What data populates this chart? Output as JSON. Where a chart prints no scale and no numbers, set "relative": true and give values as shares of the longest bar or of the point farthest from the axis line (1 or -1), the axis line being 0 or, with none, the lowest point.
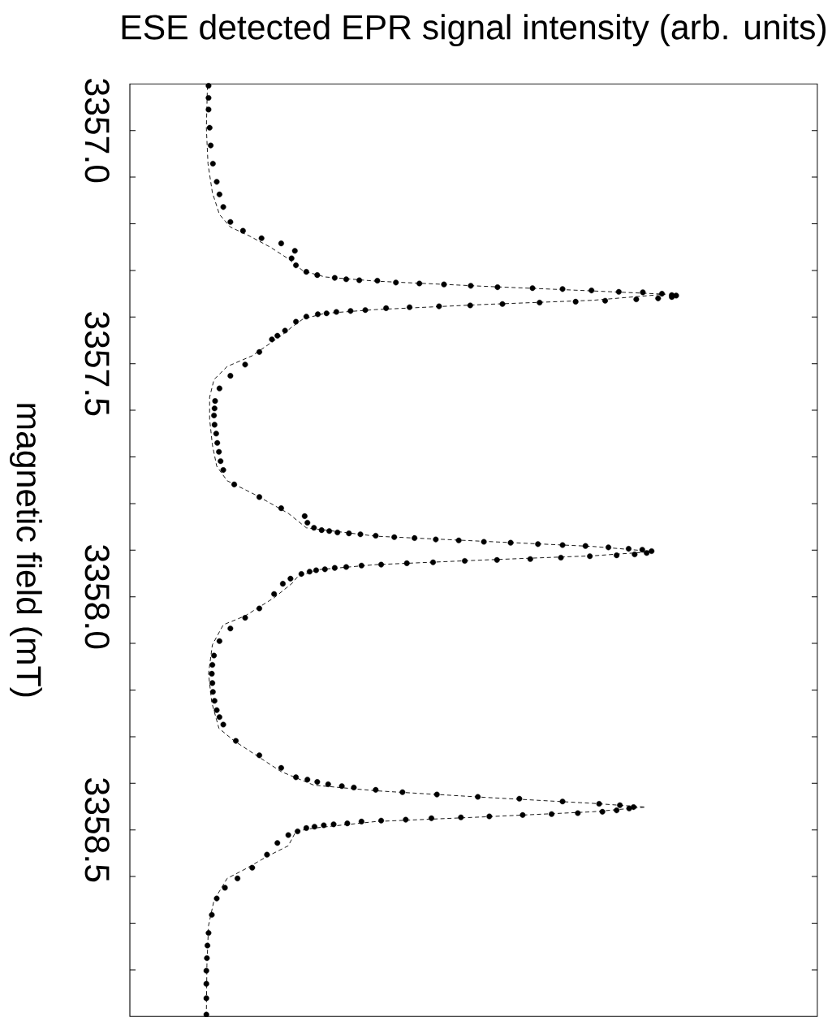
{
  "chart_data": {
    "type": "scatter",
    "orientation": "horizontal",
    "xlabel": "ESE detected EPR signal intensity (arb. units)",
    "ylabel": "magnetic field (mT)",
    "relative": true,
    "ylim": [
      3358.9,
      3356.9
    ],
    "yticks": [
      {
        "value": 3357,
        "label": "3357.0"
      },
      {
        "value": 3357.1,
        "label": null
      },
      {
        "value": 3357.2,
        "label": null
      },
      {
        "value": 3357.3,
        "label": null
      },
      {
        "value": 3357.4,
        "label": null
      },
      {
        "value": 3357.5,
        "label": "3357.5"
      },
      {
        "value": 3357.6,
        "label": null
      },
      {
        "value": 3357.7,
        "label": null
      },
      {
        "value": 3357.8,
        "label": null
      },
      {
        "value": 3357.9,
        "label": null
      },
      {
        "value": 3358,
        "label": "3358.0"
      },
      {
        "value": 3358.1,
        "label": null
      },
      {
        "value": 3358.2,
        "label": null
      },
      {
        "value": 3358.3,
        "label": null
      },
      {
        "value": 3358.4,
        "label": null
      },
      {
        "value": 3358.5,
        "label": "3358.5"
      },
      {
        "value": 3358.6,
        "label": null
      },
      {
        "value": 3358.7,
        "label": null
      },
      {
        "value": 3358.8,
        "label": null
      }
    ],
    "series": [
      {
        "color": "#000000",
        "marker": "circle",
        "x": [
          3356.904,
          3356.93,
          3356.955,
          3356.994,
          3357.032,
          3357.071,
          3357.11,
          3357.137,
          3357.164,
          3357.196,
          3357.215,
          3357.231,
          3357.242,
          3357.258,
          3357.274,
          3357.289,
          3357.303,
          3357.31,
          3357.316,
          3357.319,
          3357.321,
          3357.322,
          3357.326,
          3357.328,
          3357.33,
          3357.333,
          3357.336,
          3357.338,
          3357.34,
          3357.343,
          3357.346,
          3357.347,
          3357.35,
          3357.353,
          3357.354,
          3357.357,
          3357.36,
          3357.362,
          3357.365,
          3357.367,
          3357.369,
          3357.372,
          3357.375,
          3357.377,
          3357.379,
          3357.381,
          3357.385,
          3357.387,
          3357.389,
          3357.392,
          3357.394,
          3357.399,
          3357.41,
          3357.429,
          3357.44,
          3357.448,
          3357.475,
          3357.502,
          3357.526,
          3357.553,
          3357.58,
          3357.596,
          3357.611,
          3357.631,
          3357.65,
          3357.67,
          3357.689,
          3357.709,
          3357.728,
          3357.759,
          3357.786,
          3357.81,
          3357.827,
          3357.841,
          3357.852,
          3357.857,
          3357.859,
          3357.862,
          3357.864,
          3357.866,
          3357.869,
          3357.872,
          3357.874,
          3357.877,
          3357.879,
          3357.882,
          3357.884,
          3357.887,
          3357.889,
          3357.891,
          3357.894,
          3357.897,
          3357.899,
          3357.902,
          3357.906,
          3357.909,
          3357.911,
          3357.913,
          3357.916,
          3357.919,
          3357.921,
          3357.923,
          3357.926,
          3357.928,
          3357.931,
          3357.933,
          3357.936,
          3357.938,
          3357.941,
          3357.943,
          3357.946,
          3357.951,
          3357.961,
          3357.972,
          3357.994,
          3358.025,
          3358.045,
          3358.068,
          3358.095,
          3358.126,
          3358.146,
          3358.165,
          3358.185,
          3358.204,
          3358.223,
          3358.243,
          3358.258,
          3358.274,
          3358.309,
          3358.34,
          3358.367,
          3358.387,
          3358.392,
          3358.397,
          3358.402,
          3358.406,
          3358.409,
          3358.414,
          3358.419,
          3358.424,
          3358.429,
          3358.433,
          3358.439,
          3358.444,
          3358.447,
          3358.451,
          3358.454,
          3358.458,
          3358.461,
          3358.464,
          3358.466,
          3358.468,
          3358.471,
          3358.473,
          3358.475,
          3358.478,
          3358.48,
          3358.482,
          3358.486,
          3358.488,
          3358.49,
          3358.493,
          3358.496,
          3358.503,
          3358.511,
          3358.528,
          3358.553,
          3358.581,
          3358.604,
          3358.624,
          3358.647,
          3358.682,
          3358.721,
          3358.748,
          3358.775,
          3358.802,
          3358.83,
          3358.861,
          3358.896
        ],
        "values": [
          0.144,
          0.144,
          0.144,
          0.146,
          0.148,
          0.152,
          0.159,
          0.164,
          0.171,
          0.184,
          0.207,
          0.241,
          0.277,
          0.302,
          0.296,
          0.304,
          0.323,
          0.343,
          0.375,
          0.396,
          0.42,
          0.453,
          0.487,
          0.53,
          0.575,
          0.624,
          0.673,
          0.737,
          0.792,
          0.845,
          0.895,
          0.939,
          0.974,
          0.992,
          1.0,
          0.992,
          0.967,
          0.927,
          0.87,
          0.816,
          0.75,
          0.682,
          0.623,
          0.566,
          0.512,
          0.469,
          0.431,
          0.404,
          0.378,
          0.36,
          0.344,
          0.323,
          0.304,
          0.284,
          0.27,
          0.26,
          0.237,
          0.211,
          0.184,
          0.164,
          0.156,
          0.155,
          0.154,
          0.155,
          0.158,
          0.16,
          0.163,
          0.166,
          0.171,
          0.191,
          0.237,
          0.277,
          0.32,
          0.325,
          0.337,
          0.351,
          0.365,
          0.38,
          0.401,
          0.422,
          0.45,
          0.484,
          0.521,
          0.56,
          0.602,
          0.648,
          0.697,
          0.747,
          0.792,
          0.834,
          0.876,
          0.913,
          0.938,
          0.955,
          0.946,
          0.924,
          0.891,
          0.842,
          0.789,
          0.733,
          0.672,
          0.613,
          0.555,
          0.507,
          0.46,
          0.424,
          0.396,
          0.375,
          0.357,
          0.341,
          0.329,
          0.314,
          0.294,
          0.28,
          0.264,
          0.237,
          0.211,
          0.184,
          0.164,
          0.154,
          0.151,
          0.15,
          0.151,
          0.152,
          0.155,
          0.159,
          0.164,
          0.171,
          0.194,
          0.237,
          0.277,
          0.304,
          0.325,
          0.343,
          0.363,
          0.388,
          0.41,
          0.45,
          0.499,
          0.562,
          0.637,
          0.713,
          0.792,
          0.859,
          0.897,
          0.922,
          0.914,
          0.891,
          0.865,
          0.82,
          0.772,
          0.719,
          0.658,
          0.606,
          0.552,
          0.505,
          0.46,
          0.424,
          0.398,
          0.373,
          0.355,
          0.338,
          0.323,
          0.307,
          0.29,
          0.27,
          0.251,
          0.224,
          0.197,
          0.174,
          0.159,
          0.15,
          0.144,
          0.142,
          0.141,
          0.14,
          0.14,
          0.14,
          0.14
        ]
      },
      {
        "type": "line",
        "color": "#000000",
        "marker": "none",
        "line_style": "dashed",
        "x": [
          3356.904,
          3356.994,
          3357.071,
          3357.133,
          3357.18,
          3357.207,
          3357.225,
          3357.25,
          3357.275,
          3357.301,
          3357.314,
          3357.323,
          3357.334,
          3357.344,
          3357.351,
          3357.364,
          3357.373,
          3357.384,
          3357.392,
          3357.404,
          3357.421,
          3357.44,
          3357.483,
          3357.506,
          3357.534,
          3357.572,
          3357.619,
          3357.674,
          3357.72,
          3357.751,
          3357.782,
          3357.821,
          3357.852,
          3357.87,
          3357.881,
          3357.892,
          3357.903,
          3357.912,
          3357.921,
          3357.931,
          3357.942,
          3357.957,
          3357.971,
          3358.002,
          3358.041,
          3358.06,
          3358.103,
          3358.165,
          3358.227,
          3358.282,
          3358.309,
          3358.375,
          3358.404,
          3358.416,
          3358.43,
          3358.443,
          3358.451,
          3358.461,
          3358.472,
          3358.482,
          3358.496,
          3358.503,
          3358.534,
          3358.557,
          3358.584,
          3358.604,
          3358.651,
          3358.705,
          3358.791,
          3358.896
        ],
        "values": [
          0.142,
          0.14,
          0.143,
          0.151,
          0.164,
          0.184,
          0.217,
          0.257,
          0.29,
          0.317,
          0.357,
          0.45,
          0.648,
          0.848,
          0.98,
          0.848,
          0.648,
          0.45,
          0.357,
          0.317,
          0.297,
          0.277,
          0.224,
          0.178,
          0.154,
          0.146,
          0.146,
          0.151,
          0.159,
          0.178,
          0.231,
          0.29,
          0.323,
          0.45,
          0.648,
          0.848,
          0.96,
          0.848,
          0.648,
          0.45,
          0.343,
          0.307,
          0.297,
          0.264,
          0.211,
          0.171,
          0.151,
          0.144,
          0.15,
          0.163,
          0.191,
          0.277,
          0.337,
          0.45,
          0.648,
          0.848,
          0.944,
          0.848,
          0.648,
          0.45,
          0.337,
          0.304,
          0.29,
          0.251,
          0.211,
          0.178,
          0.154,
          0.144,
          0.141,
          0.14
        ]
      }
    ]
  }
}
